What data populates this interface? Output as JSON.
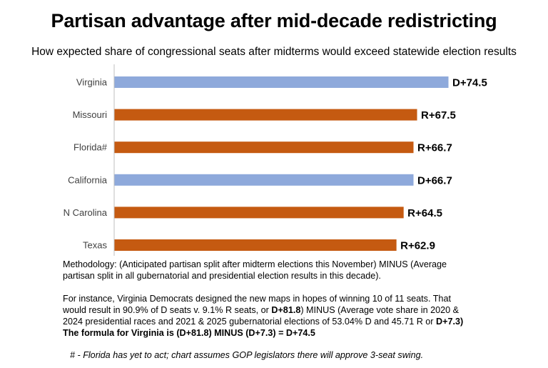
{
  "title": "Partisan advantage after mid-decade redistricting",
  "subtitle": "How expected share of congressional seats after midterms would exceed statewide election results",
  "colors": {
    "dem": "#8EA9DB",
    "rep": "#C55A11",
    "axis": "#BFBFBF"
  },
  "chart_data": {
    "type": "bar",
    "orientation": "horizontal",
    "title": "Partisan advantage after mid-decade redistricting",
    "subtitle": "How expected share of congressional seats after midterms would exceed statewide election results",
    "categories": [
      "Virginia",
      "Missouri",
      "Florida#",
      "California",
      "N Carolina",
      "Texas"
    ],
    "values": [
      74.5,
      67.5,
      66.7,
      66.7,
      64.5,
      62.9
    ],
    "parties": [
      "D",
      "R",
      "R",
      "D",
      "R",
      "R"
    ],
    "data_labels": [
      "D+74.5",
      "R+67.5",
      "R+66.7",
      "D+66.7",
      "R+64.5",
      "R+62.9"
    ],
    "xlim": [
      0,
      74.5
    ],
    "xlabel": "",
    "ylabel": "",
    "grid": false,
    "legend": "none"
  },
  "methodology": "Methodology: (Anticipated partisan split after midterm elections this November) MINUS (Average partisan split in all gubernatorial and presidential election results in this decade).",
  "example": {
    "part1": "For instance, Virginia Democrats designed the new maps in hopes of winning 10 of 11 seats. That would result in 90.9% of D seats v. 9.1% R seats, or ",
    "bold1": "D+81.8",
    "part2": ") MINUS (Average vote share in 2020 & 2024 presidential races and 2021 & 2025 gubernatorial elections of 53.04% D and 45.71 R or ",
    "bold2": "D+7.3) The formula for Virginia is (D+81.8) MINUS (D+7.3) = D+74.5"
  },
  "footnote": "# - Florida has yet to act; chart assumes GOP legislators there will approve 3-seat swing."
}
